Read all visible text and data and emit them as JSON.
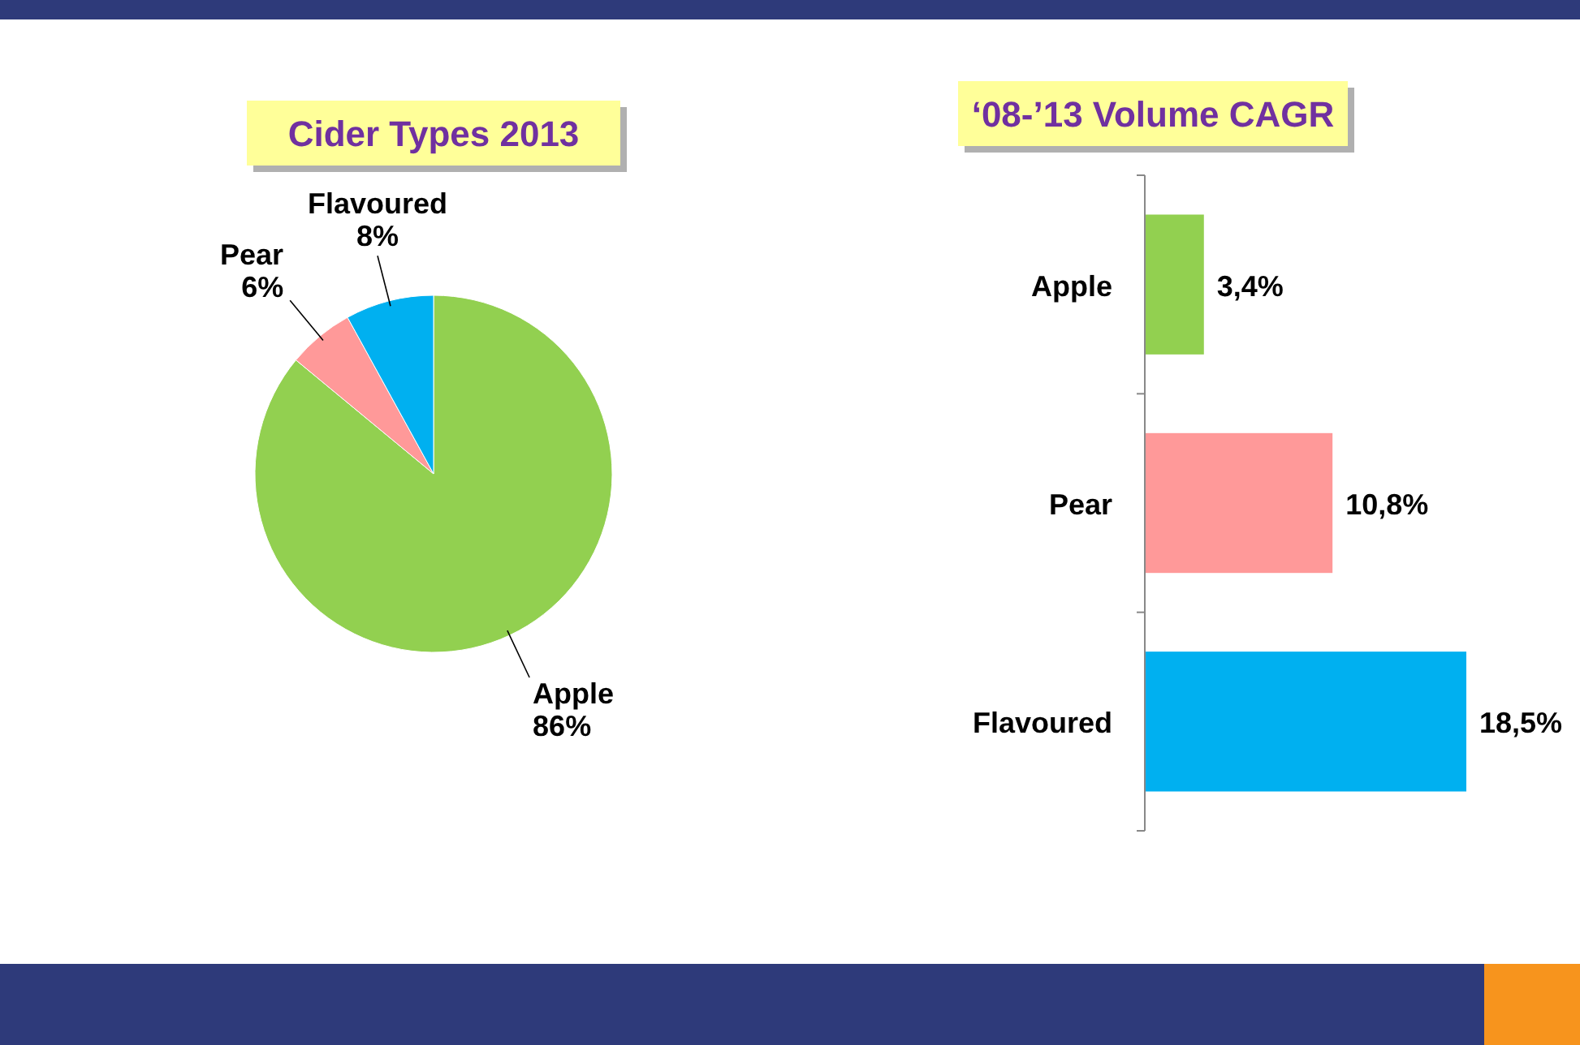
{
  "chart_data": [
    {
      "type": "pie",
      "title": "Cider Types 2013",
      "categories": [
        "Apple",
        "Pear",
        "Flavoured"
      ],
      "values": [
        86,
        6,
        8
      ],
      "colors": [
        "#92d050",
        "#ff9999",
        "#00b0f0"
      ],
      "value_labels": [
        "86%",
        "6%",
        "8%"
      ]
    },
    {
      "type": "bar",
      "orientation": "horizontal",
      "title": "‘08-’13 Volume CAGR",
      "categories": [
        "Apple",
        "Pear",
        "Flavoured"
      ],
      "values": [
        3.4,
        10.8,
        18.5
      ],
      "colors": [
        "#92d050",
        "#ff9999",
        "#00b0f0"
      ],
      "value_labels": [
        "3,4%",
        "10,8%",
        "18,5%"
      ]
    }
  ]
}
